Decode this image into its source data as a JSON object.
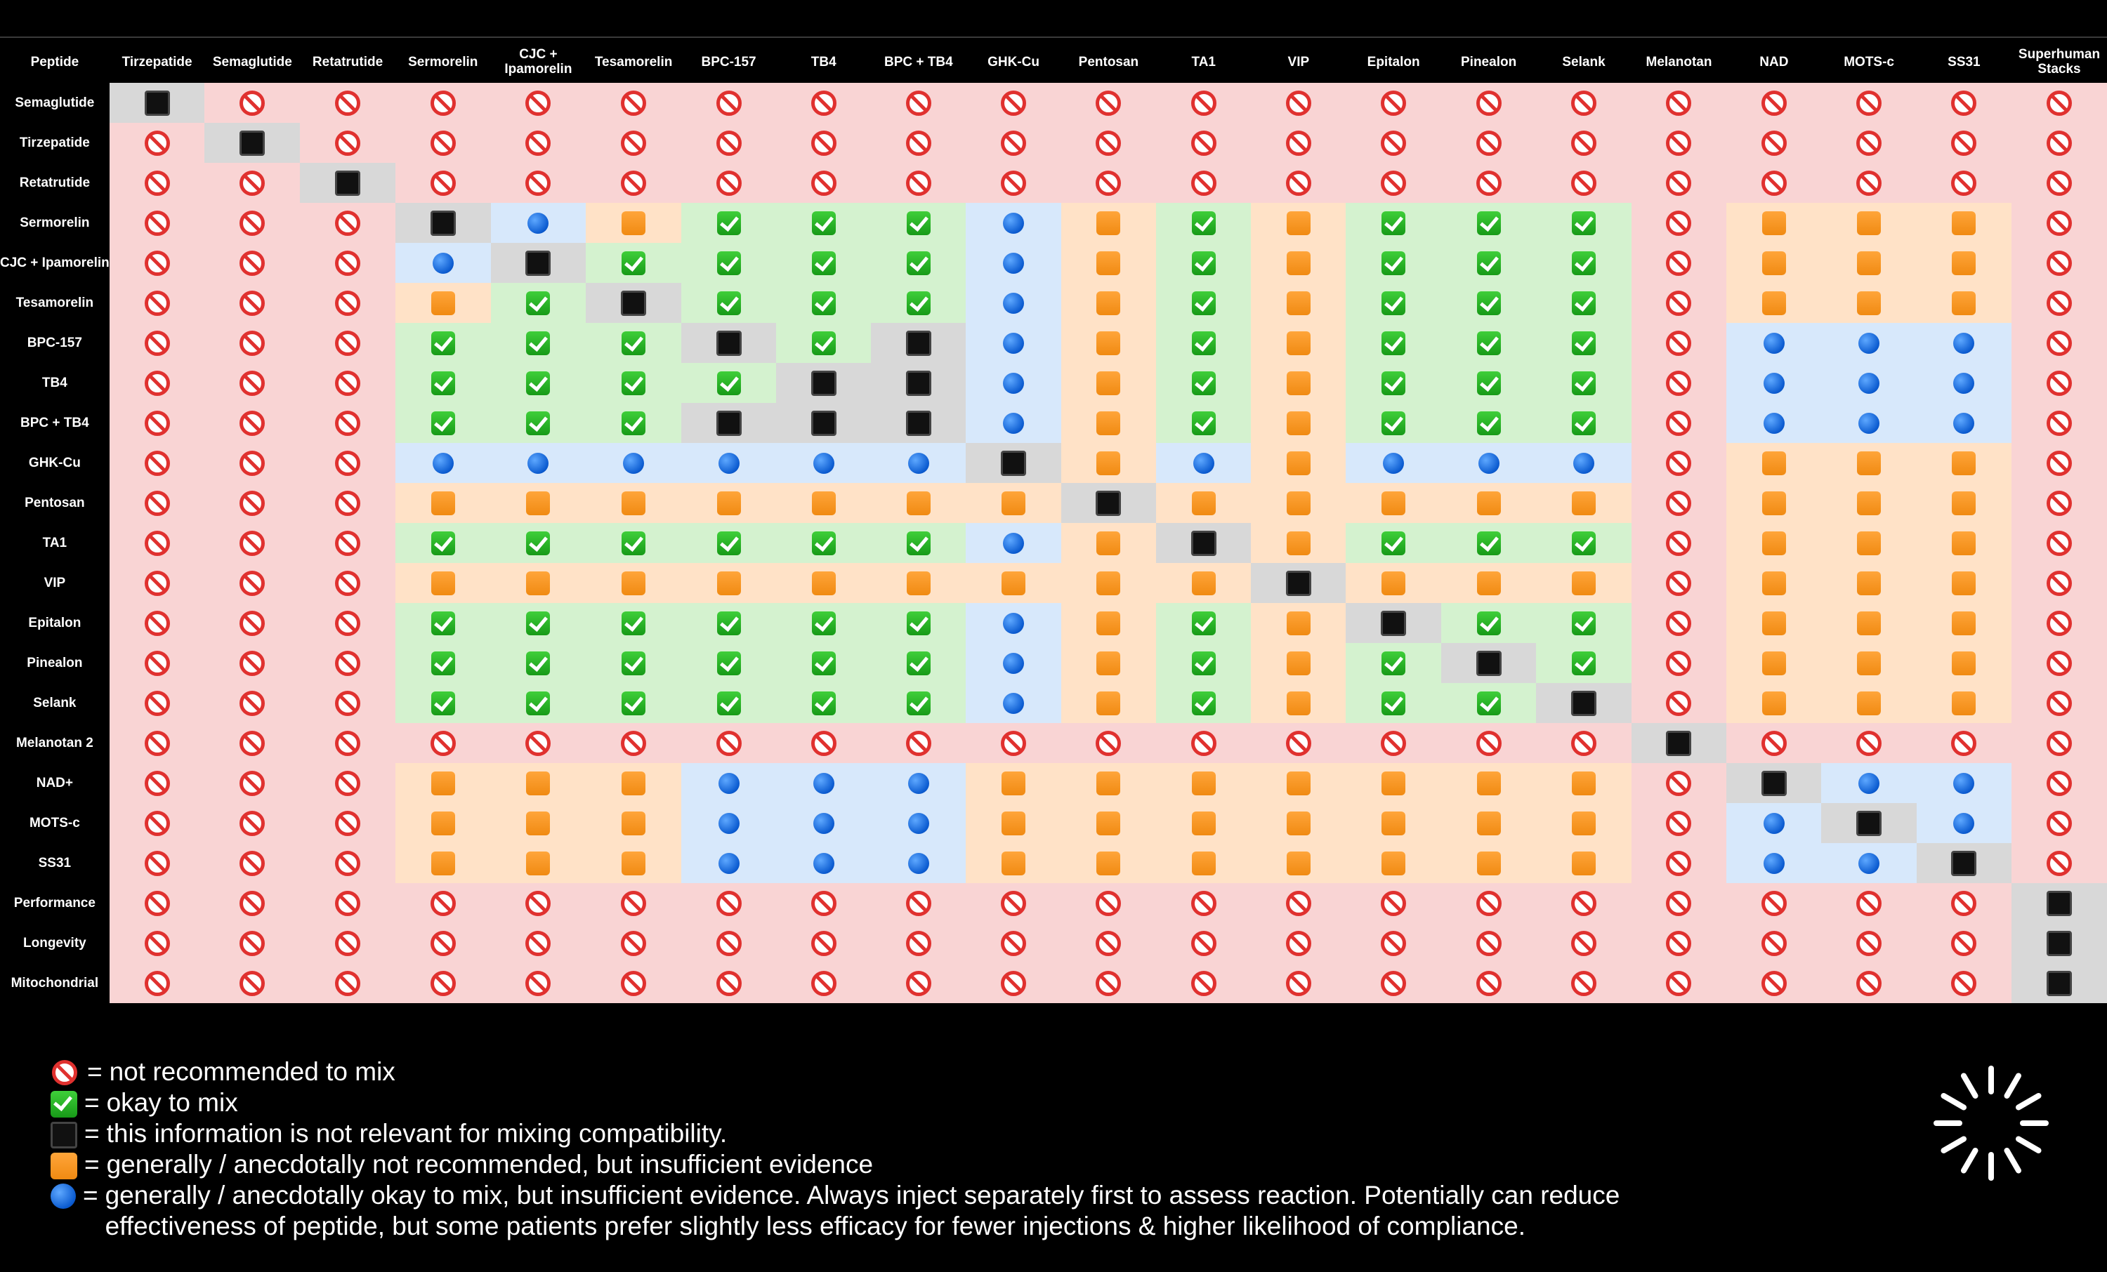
{
  "matrix": {
    "corner_label": "Peptide",
    "columns": [
      "Tirzepatide",
      "Semaglutide",
      "Retatrutide",
      "Sermorelin",
      "CJC +\nIpamorelin",
      "Tesamorelin",
      "BPC-157",
      "TB4",
      "BPC + TB4",
      "GHK-Cu",
      "Pentosan",
      "TA1",
      "VIP",
      "Epitalon",
      "Pinealon",
      "Selank",
      "Melanotan",
      "NAD",
      "MOTS-c",
      "SS31",
      "Superhuman\nStacks"
    ],
    "rows": [
      {
        "label": "Semaglutide",
        "cells": "NXXXXXXXXXXXXXXXXXXXX"
      },
      {
        "label": "Tirzepatide",
        "cells": "XNXXXXXXXXXXXXXXXXXXX"
      },
      {
        "label": "Retatrutide",
        "cells": "XXNXXXXXXXXXXXXXXXXXX"
      },
      {
        "label": "Sermorelin",
        "cells": "XXXNBWOOOBWOWOOOXWWWX"
      },
      {
        "label": "CJC +\nIpamorelin",
        "cells": "XXXBNOOOOBWOWOOOXWWWX"
      },
      {
        "label": "Tesamorelin",
        "cells": "XXXWONOOOBWOWOOOXWWWX"
      },
      {
        "label": "BPC-157",
        "cells": "XXXOOONONBWOWOOOXBBBX"
      },
      {
        "label": "TB4",
        "cells": "XXXOOOONNBWOWOOOXBBBX"
      },
      {
        "label": "BPC + TB4",
        "cells": "XXXOOONNNBWOWOOOXBBBX"
      },
      {
        "label": "GHK-Cu",
        "cells": "XXXBBBBBBNWBWBBBXWWWX"
      },
      {
        "label": "Pentosan",
        "cells": "XXXWWWWWWWNWWWWWXWWWX"
      },
      {
        "label": "TA1",
        "cells": "XXXOOOOOOBWNWOOOXWWWX"
      },
      {
        "label": "VIP",
        "cells": "XXXWWWWWWWWWNWWWXWWWX"
      },
      {
        "label": "Epitalon",
        "cells": "XXXOOOOOOBWOWNOOXWWWX"
      },
      {
        "label": "Pinealon",
        "cells": "XXXOOOOOOBWOWONOXWWWX"
      },
      {
        "label": "Selank",
        "cells": "XXXOOOOOOBWOWOONXWWWX"
      },
      {
        "label": "Melanotan 2",
        "cells": "XXXXXXXXXXXXXXXXNXXXX"
      },
      {
        "label": "NAD+",
        "cells": "XXXWWWBBBWWWWWWWXNBBX"
      },
      {
        "label": "MOTS-c",
        "cells": "XXXWWWBBBWWWWWWWXBNBX"
      },
      {
        "label": "SS31",
        "cells": "XXXWWWBBBWWWWWWWXBBNX"
      },
      {
        "label": "Performance",
        "cells": "XXXXXXXXXXXXXXXXXXXXN"
      },
      {
        "label": "Longevity",
        "cells": "XXXXXXXXXXXXXXXXXXXXN"
      },
      {
        "label": "Mitochondrial",
        "cells": "XXXXXXXXXXXXXXXXXXXXN"
      }
    ],
    "code_key": {
      "X": "no",
      "O": "ok",
      "N": "na",
      "W": "warn",
      "B": "maybe"
    }
  },
  "legend": {
    "not_recommended": "not recommended to mix",
    "okay": "okay to mix",
    "not_relevant": "this information is not relevant for mixing compatibility.",
    "generally_not": "generally / anecdotally not recommended, but insufficient evidence",
    "generally_okay": "generally / anecdotally okay to mix, but insufficient evidence. Always inject separately first to assess reaction. Potentially can reduce effectiveness of peptide, but some patients prefer slightly less efficacy for fewer injections & higher likelihood of compliance.",
    "equals": "="
  },
  "icons": {
    "no": "prohibited-icon",
    "ok": "check-mark-icon",
    "na": "black-square-icon",
    "warn": "orange-square-icon",
    "maybe": "blue-circle-icon",
    "spinner": "loading-spinner-icon"
  },
  "colors": {
    "no_bg": "#f9d4d4",
    "ok_bg": "#d4f2cf",
    "na_bg": "#d8d8d8",
    "warn_bg": "#ffe2c7",
    "maybe_bg": "#d7e8fb"
  }
}
